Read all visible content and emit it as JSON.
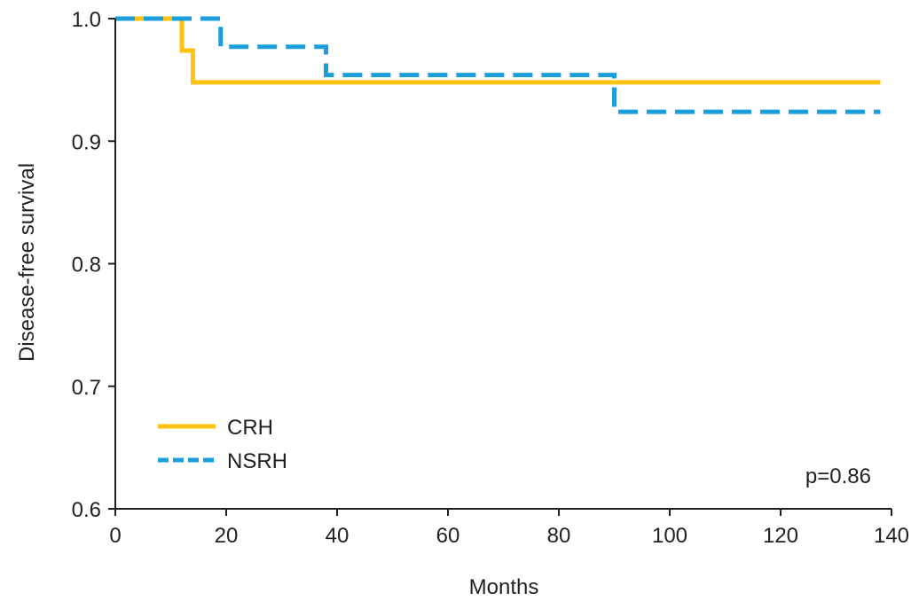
{
  "chart_data": {
    "type": "line",
    "title": "",
    "xlabel": "Months",
    "ylabel": "Disease-free survival",
    "xlim": [
      0,
      140
    ],
    "ylim": [
      0.6,
      1.0
    ],
    "x_ticks": [
      0,
      20,
      40,
      60,
      80,
      100,
      120,
      140
    ],
    "y_ticks": [
      0.6,
      0.7,
      0.8,
      0.9,
      1.0
    ],
    "x_tick_labels": [
      "0",
      "20",
      "40",
      "60",
      "80",
      "100",
      "120",
      "140"
    ],
    "y_tick_labels": [
      "0.6",
      "0.7",
      "0.8",
      "0.9",
      "1.0"
    ],
    "grid": false,
    "legend_position": "bottom-left",
    "annotation": "p=0.86",
    "series": [
      {
        "name": "CRH",
        "style": "solid",
        "color": "#ffc20e",
        "steps": [
          [
            0,
            1.0
          ],
          [
            12,
            0.974
          ],
          [
            14,
            0.948
          ],
          [
            138,
            0.948
          ]
        ]
      },
      {
        "name": "NSRH",
        "style": "dashed",
        "color": "#1b9fdc",
        "steps": [
          [
            0,
            1.0
          ],
          [
            19,
            0.977
          ],
          [
            38,
            0.954
          ],
          [
            90,
            0.924
          ],
          [
            138,
            0.924
          ]
        ]
      }
    ]
  }
}
